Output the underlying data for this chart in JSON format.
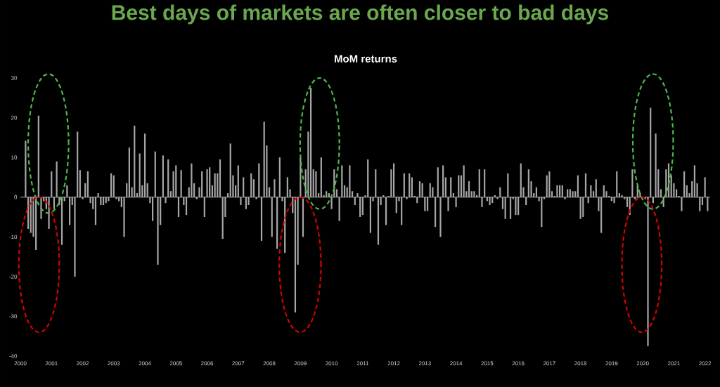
{
  "chart_data": {
    "type": "bar",
    "title": "Best days of markets are often closer to bad days",
    "subtitle": "MoM returns",
    "x": [
      "2000-03",
      "2000-04",
      "2000-05",
      "2000-06",
      "2000-07",
      "2000-08",
      "2000-09",
      "2000-10",
      "2000-11",
      "2000-12",
      "2001-01",
      "2001-02",
      "2001-03",
      "2001-04",
      "2001-05",
      "2001-06",
      "2001-07",
      "2001-08",
      "2001-09",
      "2001-10",
      "2001-11",
      "2001-12",
      "2002-01",
      "2002-02",
      "2002-03",
      "2002-04",
      "2002-05",
      "2002-06",
      "2002-07",
      "2002-08",
      "2002-09",
      "2002-10",
      "2002-11",
      "2002-12",
      "2003-01",
      "2003-02",
      "2003-03",
      "2003-04",
      "2003-05",
      "2003-06",
      "2003-07",
      "2003-08",
      "2003-09",
      "2003-10",
      "2003-11",
      "2003-12",
      "2004-01",
      "2004-02",
      "2004-03",
      "2004-04",
      "2004-05",
      "2004-06",
      "2004-07",
      "2004-08",
      "2004-09",
      "2004-10",
      "2004-11",
      "2004-12",
      "2005-01",
      "2005-02",
      "2005-03",
      "2005-04",
      "2005-05",
      "2005-06",
      "2005-07",
      "2005-08",
      "2005-09",
      "2005-10",
      "2005-11",
      "2005-12",
      "2006-01",
      "2006-02",
      "2006-03",
      "2006-04",
      "2006-05",
      "2006-06",
      "2006-07",
      "2006-08",
      "2006-09",
      "2006-10",
      "2006-11",
      "2006-12",
      "2007-01",
      "2007-02",
      "2007-03",
      "2007-04",
      "2007-05",
      "2007-06",
      "2007-07",
      "2007-08",
      "2007-09",
      "2007-10",
      "2007-11",
      "2007-12",
      "2008-01",
      "2008-02",
      "2008-03",
      "2008-04",
      "2008-05",
      "2008-06",
      "2008-07",
      "2008-08",
      "2008-09",
      "2008-10",
      "2008-11",
      "2008-12",
      "2009-01",
      "2009-02",
      "2009-03",
      "2009-04",
      "2009-05",
      "2009-06",
      "2009-07",
      "2009-08",
      "2009-09",
      "2009-10",
      "2009-11",
      "2009-12",
      "2010-01",
      "2010-02",
      "2010-03",
      "2010-04",
      "2010-05",
      "2010-06",
      "2010-07",
      "2010-08",
      "2010-09",
      "2010-10",
      "2010-11",
      "2010-12",
      "2011-01",
      "2011-02",
      "2011-03",
      "2011-04",
      "2011-05",
      "2011-06",
      "2011-07",
      "2011-08",
      "2011-09",
      "2011-10",
      "2011-11",
      "2011-12",
      "2012-01",
      "2012-02",
      "2012-03",
      "2012-04",
      "2012-05",
      "2012-06",
      "2012-07",
      "2012-08",
      "2012-09",
      "2012-10",
      "2012-11",
      "2012-12",
      "2013-01",
      "2013-02",
      "2013-03",
      "2013-04",
      "2013-05",
      "2013-06",
      "2013-07",
      "2013-08",
      "2013-09",
      "2013-10",
      "2013-11",
      "2013-12",
      "2014-01",
      "2014-02",
      "2014-03",
      "2014-04",
      "2014-05",
      "2014-06",
      "2014-07",
      "2014-08",
      "2014-09",
      "2014-10",
      "2014-11",
      "2014-12",
      "2015-01",
      "2015-02",
      "2015-03",
      "2015-04",
      "2015-05",
      "2015-06",
      "2015-07",
      "2015-08",
      "2015-09",
      "2015-10",
      "2015-11",
      "2015-12",
      "2016-01",
      "2016-02",
      "2016-03",
      "2016-04",
      "2016-05",
      "2016-06",
      "2016-07",
      "2016-08",
      "2016-09",
      "2016-10",
      "2016-11",
      "2016-12",
      "2017-01",
      "2017-02",
      "2017-03",
      "2017-04",
      "2017-05",
      "2017-06",
      "2017-07",
      "2017-08",
      "2017-09",
      "2017-10",
      "2017-11",
      "2017-12",
      "2018-01",
      "2018-02",
      "2018-03",
      "2018-04",
      "2018-05",
      "2018-06",
      "2018-07",
      "2018-08",
      "2018-09",
      "2018-10",
      "2018-11",
      "2018-12",
      "2019-01",
      "2019-02",
      "2019-03",
      "2019-04",
      "2019-05",
      "2019-06",
      "2019-07",
      "2019-08",
      "2019-09",
      "2019-10",
      "2019-11",
      "2019-12",
      "2020-01",
      "2020-02",
      "2020-03",
      "2020-04",
      "2020-05",
      "2020-06",
      "2020-07",
      "2020-08",
      "2020-09",
      "2020-10",
      "2020-11",
      "2020-12",
      "2021-01",
      "2021-02",
      "2021-03",
      "2021-04",
      "2021-05",
      "2021-06",
      "2021-07",
      "2021-08",
      "2021-09",
      "2021-10",
      "2021-11",
      "2021-12",
      "2022-01",
      "2022-02"
    ],
    "values": [
      14.2,
      -8,
      -9,
      -10,
      -13.3,
      20.5,
      -5.5,
      -1,
      -3,
      -8,
      6.5,
      -3,
      9,
      -2,
      -12,
      -1,
      3,
      -7,
      -2,
      -20,
      16.5,
      6.8,
      -0.5,
      3.5,
      6.5,
      -1.5,
      -3,
      -7,
      1,
      -2,
      -2,
      -1.5,
      -1,
      6,
      5.5,
      -0.5,
      -1,
      -2.5,
      -10,
      3.5,
      12.5,
      2.5,
      18,
      1,
      11,
      3,
      16,
      3.5,
      -1.5,
      -6,
      11.5,
      -17,
      -7,
      10.5,
      -1.5,
      9.5,
      1.5,
      6.5,
      8,
      -5,
      6.8,
      -2,
      -4.5,
      2.5,
      8.5,
      3.5,
      -0.5,
      2.5,
      6.5,
      -5,
      7,
      7.5,
      3,
      6,
      6,
      9.5,
      -10.5,
      -5,
      1,
      13.5,
      5.5,
      3,
      8,
      -2,
      5,
      -3,
      -2,
      6,
      4.5,
      -0.5,
      8.5,
      -11,
      19,
      13,
      2.5,
      -10,
      4.5,
      -13,
      10,
      -1,
      -14,
      5,
      2,
      -4,
      -29,
      -17,
      10,
      -10,
      7,
      16.5,
      27.5,
      7,
      6.5,
      1,
      10,
      0.5,
      1.5,
      1,
      -3,
      7,
      2,
      -6,
      8,
      3,
      2.5,
      8,
      1.5,
      -2,
      1,
      -5,
      -4.5,
      0.5,
      9.5,
      -9,
      -1,
      7,
      -12,
      -2,
      0.5,
      -7,
      0.3,
      7,
      8.5,
      -4,
      -1,
      -7,
      6,
      -0.5,
      6,
      5,
      0.3,
      -1.5,
      4,
      3.5,
      -3.5,
      -3.5,
      3.5,
      2.5,
      -7.5,
      7.5,
      -10,
      8,
      5,
      -3.5,
      5,
      1,
      -2.5,
      5.5,
      5.5,
      8,
      1.5,
      4,
      1.5,
      1.5,
      0.5,
      7,
      -2.5,
      7,
      -1,
      -2,
      -1.5,
      0.5,
      -0.5,
      2.5,
      -3,
      -5.5,
      6,
      -5.5,
      -0.5,
      -4.5,
      -4.5,
      8.5,
      2.5,
      -2,
      7,
      4,
      1,
      2.5,
      -1,
      -7.5,
      -0.5,
      5.5,
      6.5,
      1.5,
      0.3,
      3,
      3,
      3,
      -0.5,
      2,
      2,
      1.5,
      1.5,
      5.5,
      -5.5,
      -5,
      6,
      -1.5,
      3,
      1.5,
      4.5,
      -3.5,
      -9,
      3,
      1.5,
      0.3,
      -1,
      -1.5,
      6.5,
      1,
      0.5,
      -0.5,
      -2.5,
      -4.5,
      7,
      -0.5,
      3,
      1,
      null,
      -0.5,
      -37.5,
      22.5,
      -1.5,
      16,
      7,
      2,
      -2.5,
      7,
      8.5,
      5.5,
      3.5,
      2,
      0.3,
      -3.5,
      6.5,
      3,
      1,
      4,
      8,
      3.5,
      -3.5,
      -2,
      5,
      -3.5
    ],
    "color": "#a6a6a6",
    "xlim": [
      "2000-01",
      "2022-03"
    ],
    "xticks": [
      "2000",
      "2001",
      "2002",
      "2003",
      "2004",
      "2005",
      "2006",
      "2007",
      "2008",
      "2009",
      "2010",
      "2011",
      "2012",
      "2013",
      "2014",
      "2015",
      "2016",
      "2017",
      "2018",
      "2019",
      "2020",
      "2021",
      "2022"
    ],
    "ylim": [
      -40,
      30
    ],
    "yticks": [
      -40,
      -30,
      -20,
      -10,
      0,
      10,
      20,
      30
    ],
    "ref_lines": [
      {
        "axis": "y",
        "value": 0,
        "color": "#bfbfbf"
      }
    ]
  }
}
